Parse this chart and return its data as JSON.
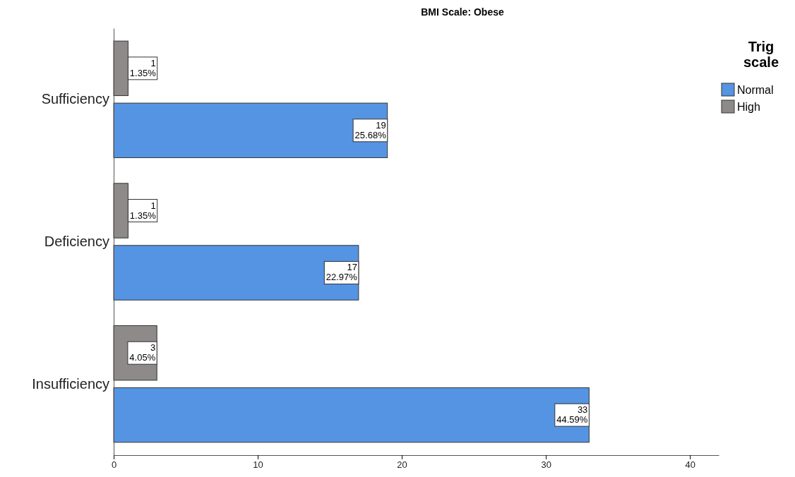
{
  "chart_data": {
    "type": "bar",
    "orientation": "horizontal",
    "title": "BMI Scale: Obese",
    "legend_title": "Trig scale",
    "legend": "top right",
    "categories": [
      "Sufficiency",
      "Deficiency",
      "Insufficiency"
    ],
    "series": [
      {
        "name": "Normal",
        "color": "#5594e2",
        "values": [
          19,
          17,
          33
        ],
        "value_labels": [
          "19\n25.68%",
          "17\n22.97%",
          "33\n44.59%"
        ]
      },
      {
        "name": "High",
        "color": "#8e8a8a",
        "values": [
          1,
          1,
          3
        ],
        "value_labels": [
          "1\n1.35%",
          "1\n1.35%",
          "3\n4.05%"
        ]
      }
    ],
    "xlim": [
      0,
      42
    ],
    "xticks": [
      0,
      10,
      20,
      30,
      40
    ],
    "grid": false
  }
}
